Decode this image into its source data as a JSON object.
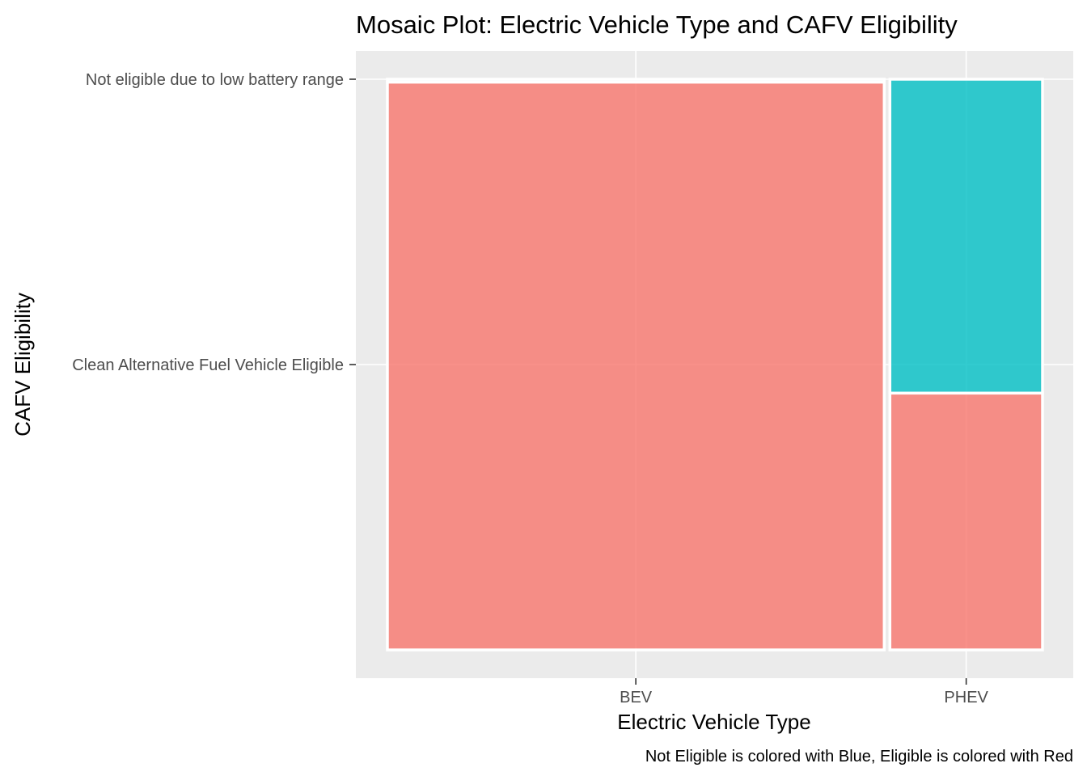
{
  "chart_data": {
    "type": "mosaic",
    "title": "Mosaic Plot: Electric Vehicle Type and CAFV Eligibility",
    "xlabel": "Electric Vehicle Type",
    "ylabel": "CAFV Eligibility",
    "caption": "Not Eligible is colored with Blue, Eligible is colored with Red",
    "x_categories": [
      "BEV",
      "PHEV"
    ],
    "y_tick_labels": [
      "Clean Alternative Fuel Vehicle Eligible",
      "Not eligible due to low battery range"
    ],
    "y_tick_values": [
      0.5,
      1.0
    ],
    "ylim": [
      0,
      1
    ],
    "x_shares": [
      0.765,
      0.235
    ],
    "segments": [
      {
        "x": "BEV",
        "group": "Clean Alternative Fuel Vehicle Eligible",
        "fraction": 0.995,
        "color": "#F8766D"
      },
      {
        "x": "BEV",
        "group": "Not eligible due to low battery range",
        "fraction": 0.005,
        "color": "#00BFC4"
      },
      {
        "x": "PHEV",
        "group": "Clean Alternative Fuel Vehicle Eligible",
        "fraction": 0.45,
        "color": "#F8766D"
      },
      {
        "x": "PHEV",
        "group": "Not eligible due to low battery range",
        "fraction": 0.55,
        "color": "#00BFC4"
      }
    ],
    "panel_background": "#EBEBEB",
    "grid_color": "#FFFFFF",
    "grid": true,
    "legend": "none"
  }
}
